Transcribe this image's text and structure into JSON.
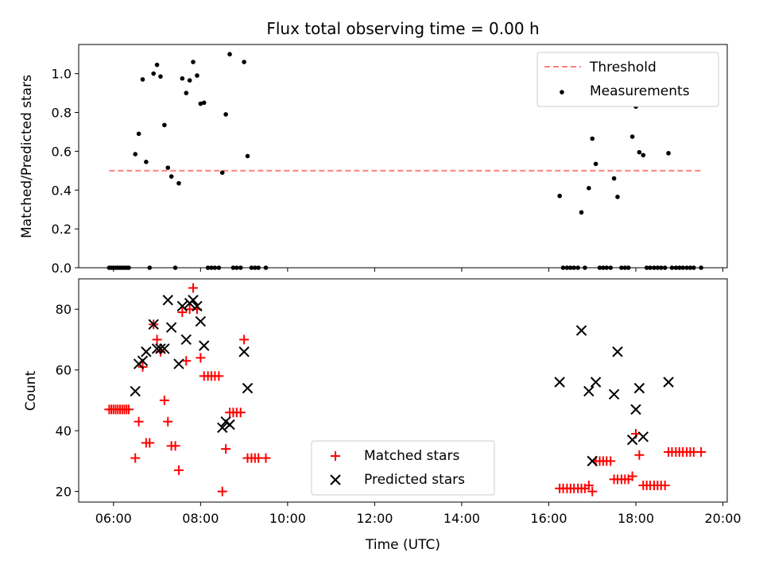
{
  "chart_data": [
    {
      "type": "scatter",
      "title": "Flux total observing time = 0.00 h",
      "xlabel": "",
      "ylabel": "Matched/Predicted stars",
      "xlim": [
        5.2,
        20.1
      ],
      "ylim": [
        0,
        1.15
      ],
      "yticks": [
        0.0,
        0.2,
        0.4,
        0.6,
        0.8,
        1.0
      ],
      "ytick_labels": [
        "0.0",
        "0.2",
        "0.4",
        "0.6",
        "0.8",
        "1.0"
      ],
      "legend_position": "top-right",
      "series": [
        {
          "name": "Threshold",
          "kind": "line",
          "style": "dashed",
          "color": "#ff7f7f",
          "x": [
            5.9,
            19.5
          ],
          "y": [
            0.5,
            0.5
          ]
        },
        {
          "name": "Measurements",
          "kind": "scatter",
          "marker": "dot",
          "color": "#000000",
          "x": [
            5.9,
            5.95,
            6.0,
            6.05,
            6.1,
            6.15,
            6.2,
            6.25,
            6.3,
            6.35,
            6.5,
            6.58,
            6.67,
            6.75,
            6.83,
            6.92,
            7.0,
            7.08,
            7.17,
            7.25,
            7.33,
            7.42,
            7.5,
            7.58,
            7.67,
            7.75,
            7.83,
            7.92,
            8.0,
            8.08,
            8.17,
            8.25,
            8.33,
            8.42,
            8.5,
            8.58,
            8.67,
            8.75,
            8.83,
            8.92,
            9.0,
            9.08,
            9.17,
            9.25,
            9.33,
            9.5,
            16.25,
            16.33,
            16.42,
            16.5,
            16.58,
            16.67,
            16.75,
            16.83,
            16.92,
            17.0,
            17.08,
            17.17,
            17.25,
            17.33,
            17.42,
            17.5,
            17.58,
            17.67,
            17.75,
            17.83,
            17.92,
            18.0,
            18.08,
            18.17,
            18.25,
            18.33,
            18.42,
            18.5,
            18.58,
            18.67,
            18.75,
            18.83,
            18.92,
            19.0,
            19.08,
            19.17,
            19.25,
            19.33,
            19.5
          ],
          "y": [
            0.0,
            0.0,
            0.0,
            0.0,
            0.0,
            0.0,
            0.0,
            0.0,
            0.0,
            0.0,
            0.585,
            0.69,
            0.97,
            0.545,
            0.0,
            1.0,
            1.045,
            0.985,
            0.735,
            0.515,
            0.47,
            0.0,
            0.435,
            0.975,
            0.9,
            0.965,
            1.06,
            0.99,
            0.845,
            0.85,
            0.0,
            0.0,
            0.0,
            0.0,
            0.49,
            0.79,
            1.1,
            0.0,
            0.0,
            0.0,
            1.06,
            0.575,
            0.0,
            0.0,
            0.0,
            0.0,
            0.37,
            0.0,
            0.0,
            0.0,
            0.0,
            0.0,
            0.285,
            0.0,
            0.41,
            0.665,
            0.535,
            0.0,
            0.0,
            0.0,
            0.0,
            0.46,
            0.365,
            0.0,
            0.0,
            0.0,
            0.675,
            0.83,
            0.595,
            0.58,
            0.0,
            0.0,
            0.0,
            0.0,
            0.0,
            0.0,
            0.59,
            0.0,
            0.0,
            0.0,
            0.0,
            0.0,
            0.0,
            0.0,
            0.0
          ]
        }
      ]
    },
    {
      "type": "scatter",
      "title": "",
      "xlabel": "Time (UTC)",
      "ylabel": "Count",
      "xlim": [
        5.2,
        20.1
      ],
      "ylim": [
        16.5,
        90
      ],
      "yticks": [
        20,
        40,
        60,
        80
      ],
      "ytick_labels": [
        "20",
        "40",
        "60",
        "80"
      ],
      "xticks": [
        6,
        8,
        10,
        12,
        14,
        16,
        18,
        20
      ],
      "xtick_labels": [
        "06:00",
        "08:00",
        "10:00",
        "12:00",
        "14:00",
        "16:00",
        "18:00",
        "20:00"
      ],
      "legend_position": "lower-center",
      "series": [
        {
          "name": "Matched stars",
          "kind": "scatter",
          "marker": "plus",
          "color": "#ff0000",
          "x": [
            5.9,
            5.95,
            6.0,
            6.05,
            6.1,
            6.15,
            6.2,
            6.25,
            6.3,
            6.35,
            6.5,
            6.58,
            6.67,
            6.75,
            6.83,
            6.92,
            7.0,
            7.08,
            7.17,
            7.25,
            7.33,
            7.42,
            7.5,
            7.58,
            7.67,
            7.75,
            7.83,
            7.92,
            8.0,
            8.08,
            8.17,
            8.25,
            8.33,
            8.42,
            8.5,
            8.58,
            8.67,
            8.75,
            8.83,
            8.92,
            9.0,
            9.08,
            9.17,
            9.25,
            9.33,
            9.5,
            16.25,
            16.33,
            16.42,
            16.5,
            16.58,
            16.67,
            16.75,
            16.83,
            16.92,
            17.0,
            17.08,
            17.17,
            17.25,
            17.33,
            17.42,
            17.5,
            17.58,
            17.67,
            17.75,
            17.83,
            17.92,
            18.0,
            18.08,
            18.17,
            18.25,
            18.33,
            18.42,
            18.5,
            18.58,
            18.67,
            18.75,
            18.83,
            18.92,
            19.0,
            19.08,
            19.17,
            19.25,
            19.33,
            19.5
          ],
          "y": [
            47,
            47,
            47,
            47,
            47,
            47,
            47,
            47,
            47,
            47,
            31,
            43,
            61,
            36,
            36,
            75,
            70,
            66,
            50,
            43,
            35,
            35,
            27,
            79,
            63,
            80,
            87,
            80,
            64,
            58,
            58,
            58,
            58,
            58,
            20,
            34,
            46,
            46,
            46,
            46,
            70,
            31,
            31,
            31,
            31,
            31,
            21,
            21,
            21,
            21,
            21,
            21,
            21,
            21,
            22,
            20,
            30,
            30,
            30,
            30,
            30,
            24,
            24,
            24,
            24,
            24,
            25,
            39,
            32,
            22,
            22,
            22,
            22,
            22,
            22,
            22,
            33,
            33,
            33,
            33,
            33,
            33,
            33,
            33,
            33
          ]
        },
        {
          "name": "Predicted stars",
          "kind": "scatter",
          "marker": "x",
          "color": "#000000",
          "x": [
            6.5,
            6.58,
            6.67,
            6.75,
            6.92,
            7.0,
            7.08,
            7.17,
            7.25,
            7.33,
            7.5,
            7.58,
            7.67,
            7.75,
            7.83,
            7.92,
            8.0,
            8.08,
            8.5,
            8.58,
            8.67,
            9.0,
            9.08,
            16.25,
            16.75,
            16.92,
            17.0,
            17.08,
            17.5,
            17.58,
            17.92,
            18.0,
            18.08,
            18.17,
            18.75
          ],
          "y": [
            53,
            62,
            63,
            66,
            75,
            67,
            67,
            67,
            83,
            74,
            62,
            81,
            70,
            82,
            83,
            81,
            76,
            68,
            41,
            43,
            42,
            66,
            54,
            56,
            73,
            53,
            30,
            56,
            52,
            66,
            37,
            47,
            54,
            38,
            56
          ]
        }
      ]
    }
  ]
}
